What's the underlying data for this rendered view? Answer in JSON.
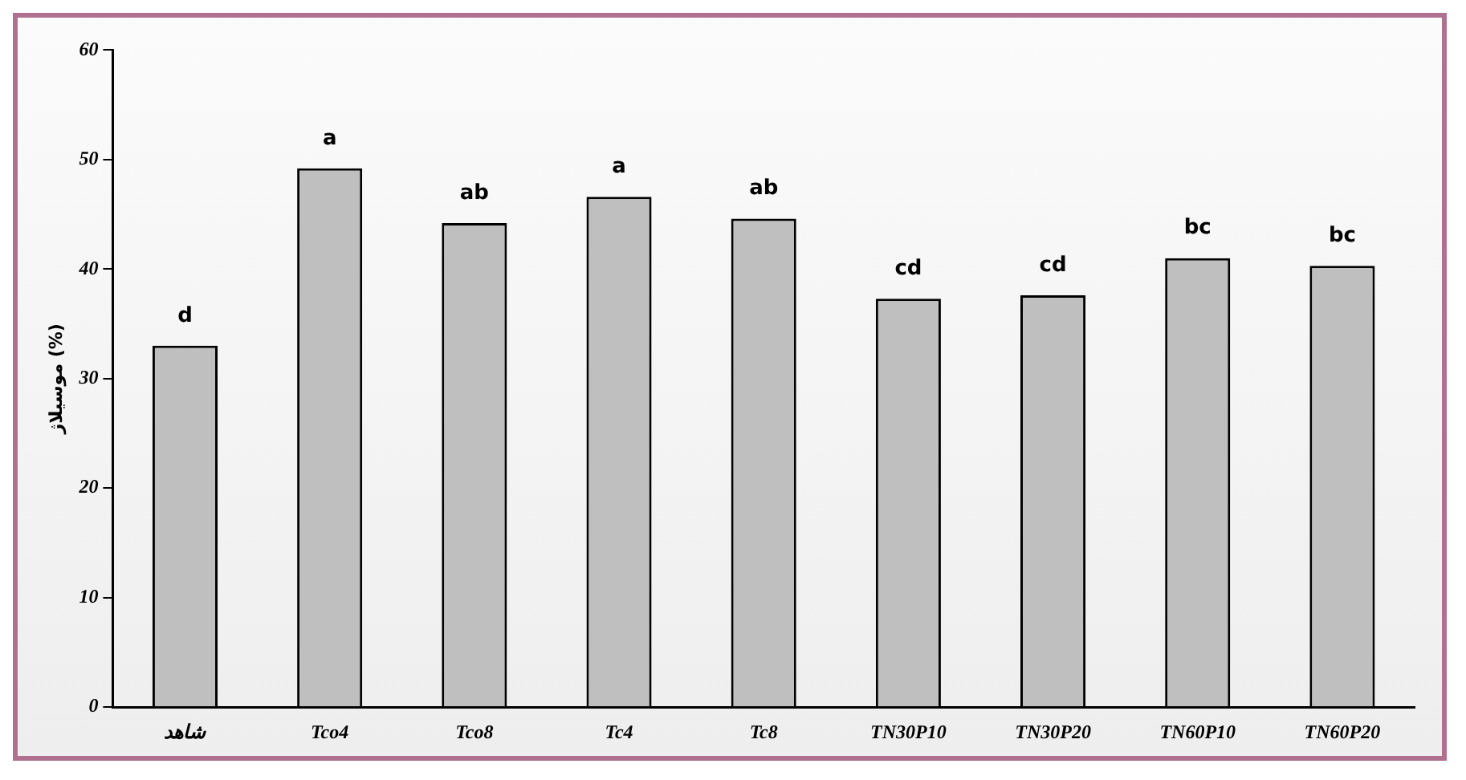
{
  "chart_data": {
    "type": "bar",
    "ylabel": "موسیلاژ (%)",
    "categories": [
      "شاهد",
      "Tco4",
      "Tco8",
      "Tc4",
      "Tc8",
      "TN30P10",
      "TN30P20",
      "TN60P10",
      "TN60P20"
    ],
    "values": [
      33,
      49.2,
      44.2,
      46.6,
      44.6,
      37.3,
      37.6,
      41,
      40.3
    ],
    "color": "#bfbfbf",
    "ylim": [
      0,
      60
    ],
    "yticks": [
      0,
      10,
      20,
      30,
      40,
      50,
      60
    ],
    "grid": false,
    "legend": false,
    "annotations": [
      {
        "text": "d",
        "x": "شاهد",
        "y": 33
      },
      {
        "text": "a",
        "x": "Tco4",
        "y": 49.2
      },
      {
        "text": "ab",
        "x": "Tco8",
        "y": 44.2
      },
      {
        "text": "a",
        "x": "Tc4",
        "y": 46.6
      },
      {
        "text": "ab",
        "x": "Tc8",
        "y": 44.6
      },
      {
        "text": "cd",
        "x": "TN30P10",
        "y": 37.3
      },
      {
        "text": "cd",
        "x": "TN30P20",
        "y": 37.6
      },
      {
        "text": "bc",
        "x": "TN60P10",
        "y": 41
      },
      {
        "text": "bc",
        "x": "TN60P20",
        "y": 40.3
      }
    ]
  }
}
